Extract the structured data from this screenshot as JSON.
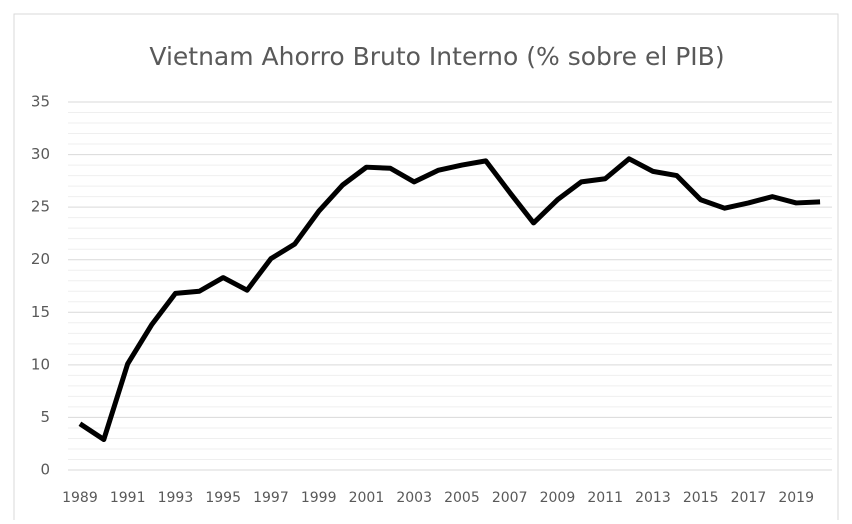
{
  "chart_data": {
    "type": "line",
    "title": "Vietnam Ahorro Bruto Interno (% sobre el PIB)",
    "categories": [
      "1989",
      null,
      "1991",
      null,
      "1993",
      null,
      "1995",
      null,
      "1997",
      null,
      "1999",
      null,
      "2001",
      null,
      "2003",
      null,
      "2005",
      null,
      "2007",
      null,
      "2009",
      null,
      "2011",
      null,
      "2013",
      null,
      "2015",
      null,
      "2017",
      null,
      "2019",
      null
    ],
    "series": [
      {
        "name": "Ahorro Bruto Interno",
        "color": "#000000",
        "values": [
          4.4,
          2.9,
          10.1,
          13.8,
          16.8,
          17.0,
          18.3,
          17.1,
          20.1,
          21.5,
          24.6,
          27.1,
          28.8,
          28.7,
          27.4,
          28.5,
          29.0,
          29.4,
          26.4,
          23.5,
          25.7,
          27.4,
          27.7,
          29.6,
          28.4,
          28.0,
          25.7,
          24.9,
          25.4,
          26.0,
          25.4,
          25.5
        ]
      }
    ],
    "ylim": [
      0,
      35
    ],
    "yticks": [
      0,
      5,
      10,
      15,
      20,
      25,
      30,
      35
    ],
    "minor_yticks": [
      1,
      2,
      3,
      4,
      6,
      7,
      8,
      9,
      11,
      12,
      13,
      14,
      16,
      17,
      18,
      19,
      21,
      22,
      23,
      24,
      26,
      27,
      28,
      29,
      31,
      32,
      33,
      34
    ],
    "grid": true
  }
}
